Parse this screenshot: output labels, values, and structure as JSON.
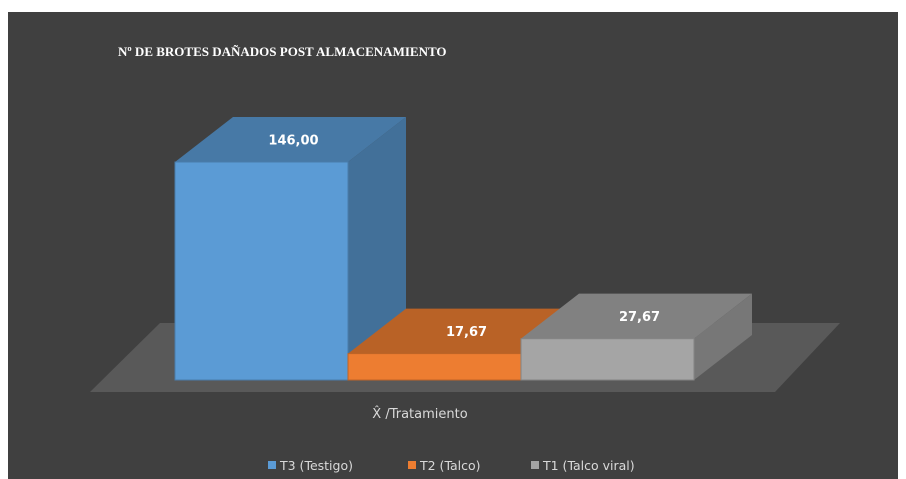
{
  "chart_data": {
    "type": "bar3d",
    "title": "Nº DE BROTES DAÑADOS POST  ALMACENAMIENTO",
    "x_label": "X̂ /Tratamiento",
    "series": [
      {
        "name": "T3 (Testigo)",
        "color": "#5b9bd5",
        "values": [
          146
        ],
        "value_labels": [
          "146,00"
        ]
      },
      {
        "name": "T2 (Talco)",
        "color": "#ed7d31",
        "values": [
          17.67
        ],
        "value_labels": [
          "17,67"
        ]
      },
      {
        "name": "T1 (Talco viral)",
        "color": "#a5a5a5",
        "values": [
          27.67
        ],
        "value_labels": [
          "27,67"
        ]
      }
    ]
  }
}
